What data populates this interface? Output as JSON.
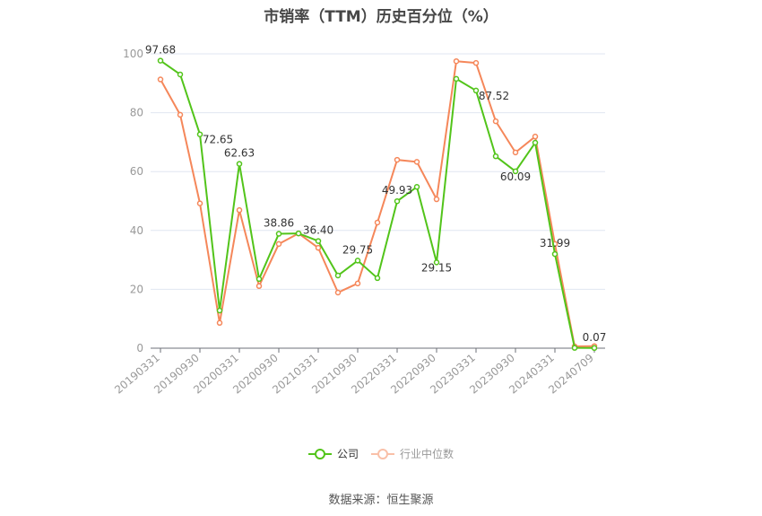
{
  "title": "市销率（TTM）历史百分位（%）",
  "source": "数据来源：恒生聚源",
  "legend": [
    {
      "name": "公司",
      "color": "#52c41a"
    },
    {
      "name": "行业中位数",
      "color": "#f5875a"
    }
  ],
  "chart_data": {
    "type": "line",
    "title": "市销率（TTM）历史百分位（%）",
    "xlabel": "",
    "ylabel": "",
    "ylim": [
      0,
      100
    ],
    "yticks": [
      0,
      20,
      40,
      60,
      80,
      100
    ],
    "grid": true,
    "legend_position": "bottom",
    "x": [
      "20190331",
      "20190630",
      "20190930",
      "20191231",
      "20200331",
      "20200630",
      "20200930",
      "20201231",
      "20210331",
      "20210630",
      "20210930",
      "20211231",
      "20220331",
      "20220630",
      "20220930",
      "20221231",
      "20230331",
      "20230630",
      "20230930",
      "20231231",
      "20240331",
      "20240630",
      "20240709"
    ],
    "xtick_labels": [
      "20190331",
      "20190930",
      "20200331",
      "20200930",
      "20210331",
      "20210930",
      "20220331",
      "20220930",
      "20230331",
      "20230930",
      "20240331",
      "20240709"
    ],
    "series": [
      {
        "name": "公司",
        "color": "#52c41a",
        "values": [
          97.68,
          93.0,
          72.65,
          12.8,
          62.63,
          23.5,
          38.86,
          39.0,
          36.4,
          24.7,
          29.75,
          23.8,
          49.93,
          54.8,
          29.15,
          91.5,
          87.52,
          65.2,
          60.09,
          69.8,
          31.99,
          0.1,
          0.07
        ],
        "labeled_points": {
          "0": "97.68",
          "2": "72.65",
          "4": "62.63",
          "6": "38.86",
          "8": "36.40",
          "10": "29.75",
          "12": "49.93",
          "14": "29.15",
          "16": "87.52",
          "18": "60.09",
          "20": "31.99",
          "22": "0.07"
        }
      },
      {
        "name": "行业中位数",
        "color": "#f5875a",
        "values": [
          91.3,
          79.3,
          49.2,
          8.6,
          46.9,
          21.1,
          35.4,
          39.0,
          34.1,
          18.9,
          22.0,
          42.7,
          64.0,
          63.3,
          50.6,
          97.5,
          96.9,
          77.1,
          66.5,
          71.9,
          35.4,
          0.6,
          0.7
        ]
      }
    ]
  }
}
